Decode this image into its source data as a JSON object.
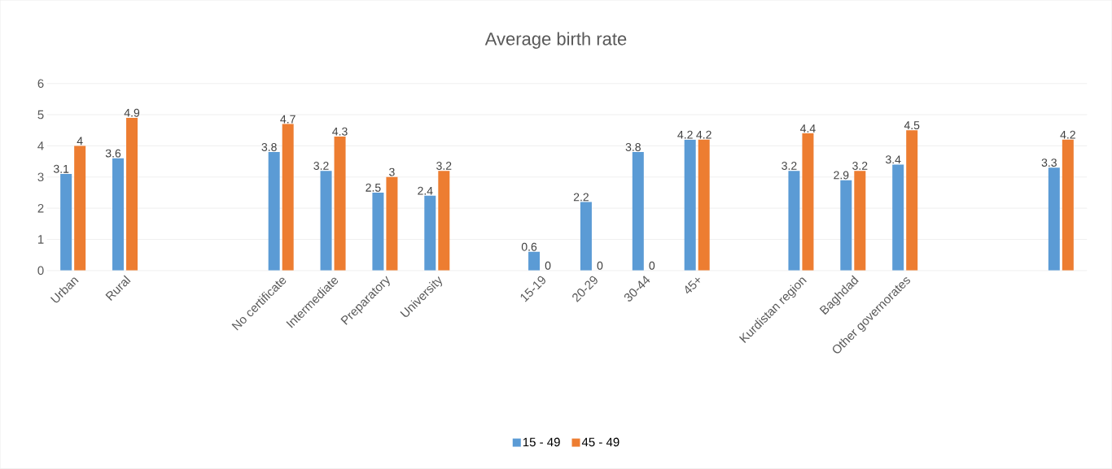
{
  "chart_data": {
    "type": "bar",
    "title": "Average birth rate",
    "categories": [
      "Urban",
      "Rural",
      null,
      null,
      "No certificate",
      "Intermediate",
      "Preparatory",
      "University",
      null,
      "15-19",
      "20-29",
      "30-44",
      "45+",
      null,
      "Kurdistan region",
      "Baghdad",
      "Other governorates",
      null,
      null,
      null
    ],
    "series": [
      {
        "name": "15 - 49",
        "color": "#5b9bd5",
        "values": [
          3.1,
          3.6,
          null,
          null,
          3.8,
          3.2,
          2.5,
          2.4,
          null,
          0.6,
          2.2,
          3.8,
          4.2,
          null,
          3.2,
          2.9,
          3.4,
          null,
          null,
          3.3
        ]
      },
      {
        "name": "45 - 49",
        "color": "#ed7d31",
        "values": [
          4,
          4.9,
          null,
          null,
          4.7,
          4.3,
          3,
          3.2,
          null,
          0,
          0,
          0,
          4.2,
          null,
          4.4,
          3.2,
          4.5,
          null,
          null,
          4.2
        ]
      }
    ],
    "ylim": [
      0,
      6
    ],
    "yticks": [
      0,
      1,
      2,
      3,
      4,
      5,
      6
    ],
    "grid": "y",
    "legend": "bottom",
    "data_labels": true
  }
}
